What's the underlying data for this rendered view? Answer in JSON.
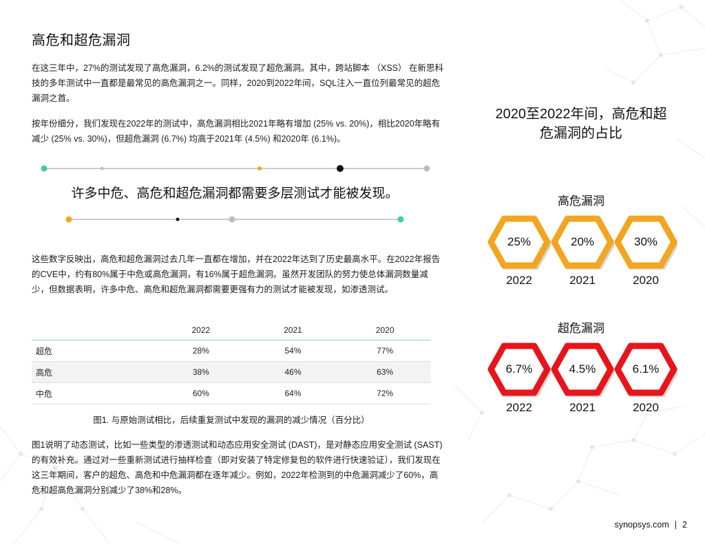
{
  "section_title": "高危和超危漏洞",
  "paragraphs": {
    "p1": "在这三年中，27%的测试发现了高危漏洞，6.2%的测试发现了超危漏洞。其中，跨站脚本 （XSS） 在新思科技的多年测试中一直都是最常见的高危漏洞之一。同样，2020到2022年间，SQL注入一直位列最常见的超危漏洞之首。",
    "p2": "按年份细分，我们发现在2022年的测试中，高危漏洞相比2021年略有增加 (25% vs. 20%)，相比2020年略有减少 (25% vs. 30%)，但超危漏洞 (6.7%) 均高于2021年 (4.5%) 和2020年 (6.1%)。",
    "p3": "这些数字反映出，高危和超危漏洞过去几年一直都在增加，并在2022年达到了历史最高水平。在2022年报告的CVE中，约有80%属于中危或高危漏洞，有16%属于超危漏洞。虽然开发团队的努力使总体漏洞数量减少，但数据表明，许多中危、高危和超危漏洞都需要更强有力的测试才能被发现，如渗透测试。",
    "p4": "图1说明了动态测试，比如一些类型的渗透测试和动态应用安全测试 (DAST)，是对静态应用安全测试 (SAST) 的有效补充。通过对一些重新测试进行抽样检查（即对安装了特定修复包的软件进行快速验证），我们发现在这三年期间，客户的超危、高危和中危漏洞都在逐年减少。例如，2022年检测到的中危漏洞减少了60%，高危和超高危漏洞分别减少了38%和28%。"
  },
  "callout": "许多中危、高危和超危漏洞都需要多层测试才能被发现。",
  "table": {
    "headers": [
      "",
      "2022",
      "2021",
      "2020"
    ],
    "rows": [
      {
        "label": "超危",
        "values": [
          "28%",
          "54%",
          "77%"
        ]
      },
      {
        "label": "高危",
        "values": [
          "38%",
          "46%",
          "63%"
        ]
      },
      {
        "label": "中危",
        "values": [
          "60%",
          "64%",
          "72%"
        ]
      }
    ]
  },
  "figure_caption": "图1. 与原始测试相比，后续重复测试中发现的漏洞的减少情况（百分比）",
  "sidebar": {
    "title_line1": "2020至2022年间，高危和超",
    "title_line2": "危漏洞的占比",
    "high": {
      "label": "高危漏洞",
      "color": "#f2a51e",
      "items": [
        {
          "value": "25%",
          "year": "2022"
        },
        {
          "value": "20%",
          "year": "2021"
        },
        {
          "value": "30%",
          "year": "2020"
        }
      ]
    },
    "critical": {
      "label": "超危漏洞",
      "color": "#e8141c",
      "items": [
        {
          "value": "6.7%",
          "year": "2022"
        },
        {
          "value": "4.5%",
          "year": "2021"
        },
        {
          "value": "6.1%",
          "year": "2020"
        }
      ]
    }
  },
  "footer": {
    "site": "synopsys.com",
    "separator": "|",
    "page": "2"
  },
  "deco_colors": {
    "green": "#3ecf9a",
    "orange": "#f2a51e",
    "black": "#111111",
    "gray": "#bdbdbd"
  }
}
